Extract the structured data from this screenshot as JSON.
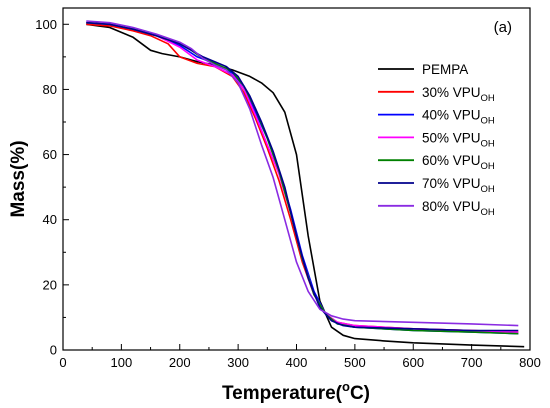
{
  "chart_data": {
    "type": "line",
    "panel_label": "(a)",
    "xlabel": "Temperature(°C)",
    "xlabel_parts": {
      "main": "Temperature(",
      "sup": "o",
      "end": "C)"
    },
    "ylabel": "Mass(%)",
    "xlim": [
      0,
      800
    ],
    "ylim": [
      0,
      105
    ],
    "xticks": [
      0,
      100,
      200,
      300,
      400,
      500,
      600,
      700,
      800
    ],
    "yticks": [
      0,
      20,
      40,
      60,
      80,
      100
    ],
    "legend_position": "right",
    "series": [
      {
        "name": "PEMPA",
        "name_base": "PEMPA",
        "name_sub": "",
        "color": "#000000",
        "x": [
          40,
          80,
          120,
          150,
          170,
          200,
          230,
          260,
          290,
          320,
          340,
          360,
          380,
          400,
          420,
          440,
          460,
          480,
          500,
          550,
          600,
          700,
          790
        ],
        "y": [
          100,
          99,
          96,
          92,
          91,
          90,
          88.5,
          87.5,
          86,
          84,
          82,
          79,
          73,
          60,
          35,
          15,
          7,
          4.5,
          3.5,
          2.8,
          2.2,
          1.5,
          1
        ]
      },
      {
        "name": "30% VPUOH",
        "name_base": "30% VPU",
        "name_sub": "OH",
        "color": "#ff0000",
        "x": [
          40,
          80,
          120,
          150,
          180,
          200,
          230,
          260,
          290,
          310,
          330,
          350,
          370,
          390,
          410,
          430,
          450,
          470,
          500,
          600,
          700,
          780
        ],
        "y": [
          100,
          99.5,
          98,
          96.5,
          94,
          90,
          88,
          87,
          84,
          79,
          71,
          62,
          52,
          40,
          27,
          17,
          11,
          8.5,
          7.5,
          6.5,
          6,
          5.5
        ]
      },
      {
        "name": "40% VPUOH",
        "name_base": "40% VPU",
        "name_sub": "OH",
        "color": "#0000ff",
        "x": [
          40,
          80,
          120,
          160,
          200,
          230,
          260,
          290,
          310,
          330,
          350,
          370,
          390,
          410,
          430,
          450,
          470,
          500,
          600,
          700,
          780
        ],
        "y": [
          100.5,
          100,
          98.5,
          96.5,
          93.5,
          90,
          88,
          85,
          80,
          73,
          65,
          55,
          43,
          29,
          18,
          11,
          8,
          7,
          6,
          5.5,
          5
        ]
      },
      {
        "name": "50% VPUOH",
        "name_base": "50% VPU",
        "name_sub": "OH",
        "color": "#ff00ff",
        "x": [
          40,
          80,
          120,
          160,
          200,
          230,
          260,
          290,
          310,
          330,
          350,
          370,
          390,
          410,
          430,
          450,
          470,
          500,
          600,
          700,
          780
        ],
        "y": [
          100.5,
          100,
          98.5,
          96.5,
          93,
          89,
          87,
          84.5,
          80,
          72,
          63,
          54,
          42,
          28,
          17,
          11,
          8.5,
          7.5,
          6.5,
          6,
          5.5
        ]
      },
      {
        "name": "60% VPUOH",
        "name_base": "60% VPU",
        "name_sub": "OH",
        "color": "#008000",
        "x": [
          40,
          80,
          120,
          160,
          200,
          220,
          240,
          260,
          290,
          310,
          330,
          350,
          370,
          390,
          410,
          430,
          450,
          470,
          500,
          600,
          700,
          780
        ],
        "y": [
          100.5,
          100,
          98.5,
          96.5,
          94,
          92,
          89.5,
          88,
          85.5,
          81,
          74,
          65,
          55,
          42,
          28,
          17,
          11,
          8,
          7,
          6,
          5.5,
          5
        ]
      },
      {
        "name": "70% VPUOH",
        "name_base": "70% VPU",
        "name_sub": "OH",
        "color": "#00008b",
        "x": [
          40,
          80,
          120,
          160,
          200,
          220,
          240,
          260,
          280,
          300,
          320,
          340,
          360,
          380,
          400,
          420,
          440,
          460,
          480,
          500,
          600,
          700,
          780
        ],
        "y": [
          100.5,
          100,
          98.5,
          96.5,
          94,
          92,
          90,
          88.5,
          87,
          84,
          78,
          70,
          61,
          50,
          35,
          22,
          13,
          9,
          7.5,
          7,
          6.5,
          6,
          6
        ]
      },
      {
        "name": "80% VPUOH",
        "name_base": "80% VPU",
        "name_sub": "OH",
        "color": "#8a2be2",
        "x": [
          40,
          80,
          120,
          160,
          200,
          220,
          240,
          260,
          280,
          300,
          320,
          340,
          360,
          380,
          400,
          420,
          440,
          460,
          480,
          500,
          600,
          700,
          780
        ],
        "y": [
          101,
          100.5,
          99,
          97,
          94.5,
          92.5,
          89.5,
          87.5,
          86,
          82,
          74,
          63,
          53,
          40,
          27,
          18,
          12.5,
          10.5,
          9.5,
          9,
          8.5,
          8,
          7.5
        ]
      }
    ]
  }
}
